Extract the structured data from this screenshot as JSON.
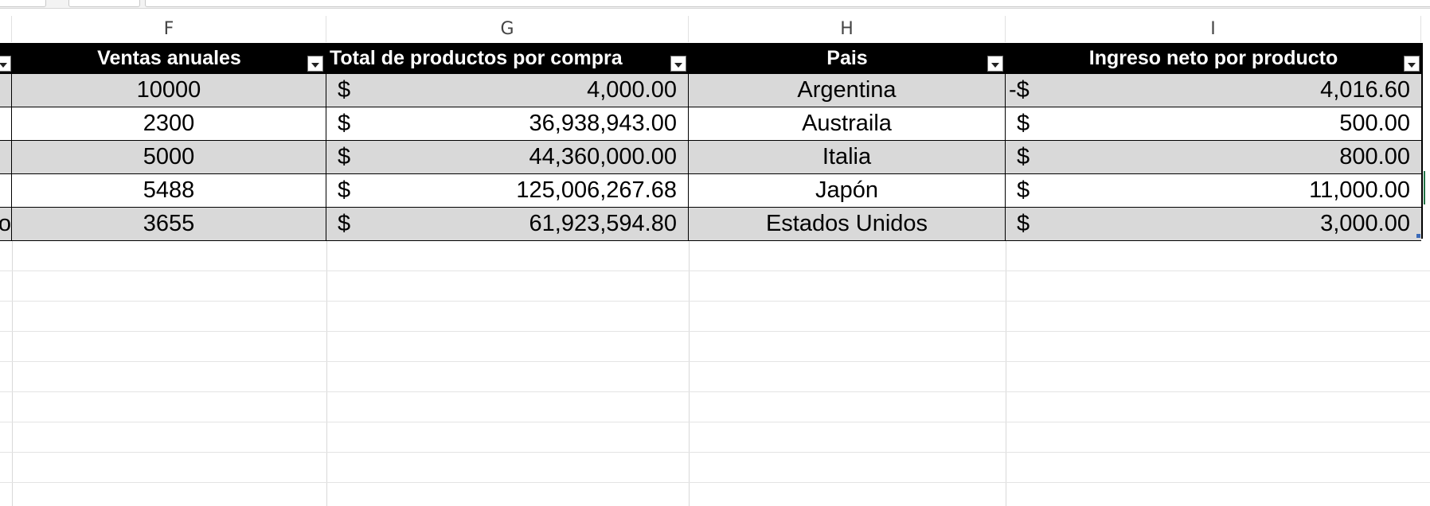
{
  "columns": [
    "F",
    "G",
    "H",
    "I"
  ],
  "table": {
    "headers": [
      "Ventas anuales",
      "Total de productos por compra",
      "Pais",
      "Ingreso neto por producto"
    ],
    "rows": [
      {
        "e_clip": "",
        "ventas": "10000",
        "total_sym": "$",
        "total": "4,000.00",
        "pais": "Argentina",
        "ingreso_sym": "-$",
        "ingreso": "4,016.60"
      },
      {
        "e_clip": "",
        "ventas": "2300",
        "total_sym": "$",
        "total": "36,938,943.00",
        "pais": "Austraila",
        "ingreso_sym": "$",
        "ingreso": "500.00"
      },
      {
        "e_clip": "",
        "ventas": "5000",
        "total_sym": "$",
        "total": "44,360,000.00",
        "pais": "Italia",
        "ingreso_sym": "$",
        "ingreso": "800.00"
      },
      {
        "e_clip": "",
        "ventas": "5488",
        "total_sym": "$",
        "total": "125,006,267.68",
        "pais": "Japón",
        "ingreso_sym": "$",
        "ingreso": "11,000.00"
      },
      {
        "e_clip": "o",
        "ventas": "3655",
        "total_sym": "$",
        "total": "61,923,594.80",
        "pais": "Estados Unidos",
        "ingreso_sym": "$",
        "ingreso": "3,000.00"
      }
    ]
  },
  "colors": {
    "header_bg": "#000000",
    "band_bg": "#d9d9d9",
    "accent": "#217346"
  }
}
